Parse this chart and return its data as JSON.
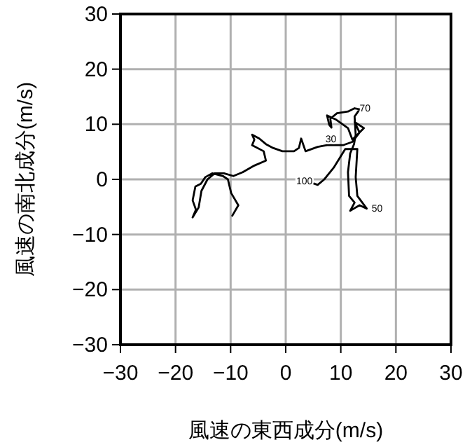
{
  "chart_data": {
    "type": "line",
    "xlabel": "風速の東西成分(m/s)",
    "ylabel": "風速の南北成分(m/s)",
    "xlim": [
      -30,
      30
    ],
    "ylim": [
      -30,
      30
    ],
    "xticks": [
      {
        "value": -30,
        "label": "−30"
      },
      {
        "value": -20,
        "label": "−20"
      },
      {
        "value": -10,
        "label": "−10"
      },
      0,
      10,
      20,
      30
    ],
    "yticks": [
      {
        "value": -30,
        "label": "−30"
      },
      {
        "value": -20,
        "label": "−20"
      },
      {
        "value": -10,
        "label": "−10"
      },
      0,
      10,
      20,
      30
    ],
    "grid": true,
    "marker": "none",
    "line_style": "solid",
    "series": [
      {
        "color": "#000000",
        "x": [
          -9.7,
          -8.6,
          -9.9,
          -10.5,
          -11.4,
          -13.3,
          -14.6,
          -15.4,
          -16.4,
          -16.9,
          -16.3,
          -16.9,
          -15.8,
          -15.3,
          -14.2,
          -12.9,
          -11.2,
          -9.5,
          -7.8,
          -5.7,
          -3.6,
          -4.0,
          -6.1,
          -5.7,
          -6.1,
          -4.8,
          -3.6,
          -2.3,
          -0.6,
          1.5,
          2.4,
          2.8,
          3.6,
          5.8,
          7.5,
          10.4,
          12.1,
          13.4,
          12.5,
          14.2,
          12.1,
          11.3,
          9.2,
          7.5,
          7.9,
          8.3,
          8.1,
          9.3,
          11.3,
          12.5,
          13.4,
          12.5,
          12.7,
          12.4,
          11.7,
          11.3,
          11.5,
          12.5,
          11.7,
          13.4,
          14.7,
          13.0,
          12.7,
          13.0,
          10.8,
          8.7,
          7.0,
          5.8,
          4.1,
          3.1
        ],
        "values": [
          -6.6,
          -4.7,
          -2.5,
          0.0,
          0.6,
          1.1,
          0.4,
          -0.8,
          -1.3,
          -3.8,
          -5.5,
          -6.9,
          -5.1,
          -2.1,
          0.0,
          1.1,
          1.1,
          0.6,
          1.3,
          2.5,
          3.4,
          5.1,
          6.2,
          7.2,
          8.1,
          7.4,
          6.4,
          5.7,
          5.1,
          5.1,
          5.7,
          7.4,
          5.1,
          5.9,
          6.2,
          6.2,
          6.8,
          8.5,
          10.4,
          9.3,
          7.2,
          9.3,
          10.8,
          11.6,
          9.9,
          9.4,
          11.0,
          12.0,
          12.3,
          12.9,
          12.7,
          11.4,
          8.1,
          6.4,
          4.7,
          1.3,
          -3.0,
          -4.2,
          -5.7,
          -4.7,
          -5.3,
          -3.0,
          0.4,
          5.5,
          5.5,
          2.1,
          0.0,
          -1.0,
          -0.4,
          -0.4
        ]
      }
    ],
    "annotations": [
      {
        "text": "70",
        "x": 13.4,
        "y": 12.9
      },
      {
        "text": "30",
        "x": 7.2,
        "y": 7.2
      },
      {
        "text": "100",
        "x": 1.9,
        "y": -0.4
      },
      {
        "text": "50",
        "x": 15.6,
        "y": -5.3
      }
    ]
  }
}
